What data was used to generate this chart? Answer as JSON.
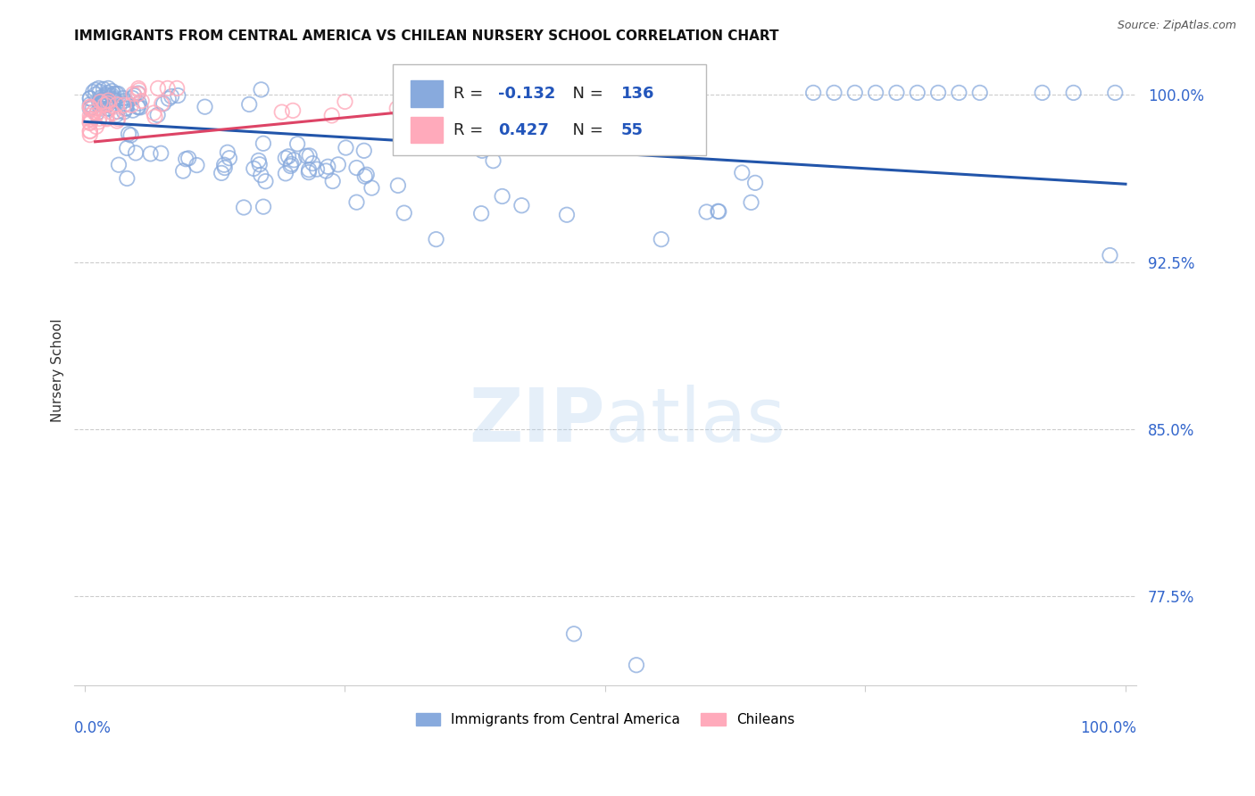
{
  "title": "IMMIGRANTS FROM CENTRAL AMERICA VS CHILEAN NURSERY SCHOOL CORRELATION CHART",
  "source": "Source: ZipAtlas.com",
  "ylabel": "Nursery School",
  "legend_blue_R": "-0.132",
  "legend_blue_N": "136",
  "legend_pink_R": "0.427",
  "legend_pink_N": "55",
  "legend_label_blue": "Immigrants from Central America",
  "legend_label_pink": "Chileans",
  "ytick_labels": [
    "77.5%",
    "85.0%",
    "92.5%",
    "100.0%"
  ],
  "ytick_values": [
    0.775,
    0.85,
    0.925,
    1.0
  ],
  "ylim_low": 0.735,
  "ylim_high": 1.018,
  "xlim_low": -0.01,
  "xlim_high": 1.01,
  "blue_scatter_color": "#88AADD",
  "pink_scatter_color": "#FFAABB",
  "trend_blue_color": "#2255AA",
  "trend_pink_color": "#DD4466",
  "grid_color": "#CCCCCC",
  "ytick_color": "#3366CC",
  "xtick_color": "#3366CC",
  "background_color": "#FFFFFF",
  "watermark_zip_color": "#AACCEE",
  "watermark_atlas_color": "#AACCEE",
  "legend_R_color": "#2255BB",
  "legend_N_color": "#2255BB",
  "title_color": "#111111",
  "source_color": "#555555"
}
